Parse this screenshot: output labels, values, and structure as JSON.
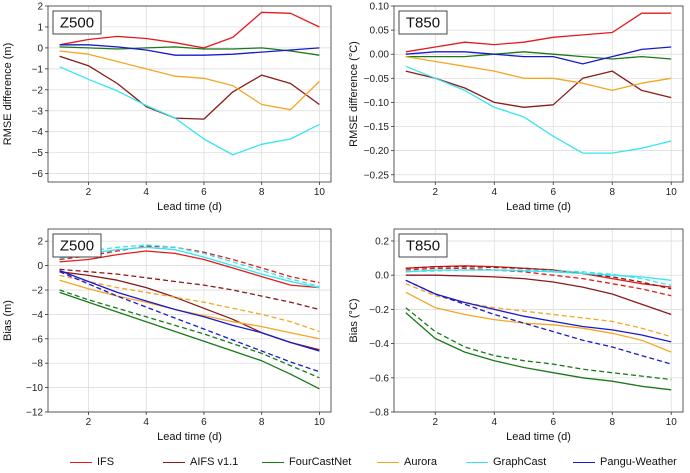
{
  "colors": {
    "IFS": "#e41a1c",
    "AIFS v1.1": "#8b1a1a",
    "FourCastNet": "#1a7a1a",
    "Aurora": "#f5a623",
    "GraphCast": "#33e6f0",
    "Pangu-Weather": "#1a1acd"
  },
  "legend": [
    "IFS",
    "AIFS v1.1",
    "FourCastNet",
    "Aurora",
    "GraphCast",
    "Pangu-Weather"
  ],
  "chart_data": [
    {
      "type": "line",
      "panel_title": "Z500",
      "xlabel": "Lead time (d)",
      "ylabel": "RMSE difference (m)",
      "xlim": [
        0.6,
        10.4
      ],
      "ylim": [
        -6.4,
        2.0
      ],
      "xticks": [
        2,
        4,
        6,
        8,
        10
      ],
      "yticks": [
        -6,
        -5,
        -4,
        -3,
        -2,
        -1,
        0,
        1,
        2
      ],
      "grid": true,
      "x": [
        1,
        2,
        3,
        4,
        5,
        6,
        7,
        8,
        9,
        10
      ],
      "series": [
        {
          "name": "IFS",
          "style": "solid",
          "values": [
            0.15,
            0.4,
            0.55,
            0.45,
            0.25,
            0.0,
            0.5,
            1.7,
            1.65,
            1.0
          ]
        },
        {
          "name": "AIFS v1.1",
          "style": "solid",
          "values": [
            -0.4,
            -0.85,
            -1.7,
            -2.8,
            -3.35,
            -3.4,
            -2.1,
            -1.3,
            -1.7,
            -2.7
          ]
        },
        {
          "name": "FourCastNet",
          "style": "solid",
          "values": [
            0.05,
            0.0,
            -0.05,
            0.0,
            0.05,
            -0.05,
            -0.05,
            0.0,
            -0.15,
            -0.35
          ]
        },
        {
          "name": "Aurora",
          "style": "solid",
          "values": [
            -0.15,
            -0.3,
            -0.65,
            -1.0,
            -1.35,
            -1.45,
            -1.8,
            -2.7,
            -2.95,
            -1.6
          ]
        },
        {
          "name": "GraphCast",
          "style": "solid",
          "values": [
            -0.9,
            -1.5,
            -2.05,
            -2.75,
            -3.35,
            -4.35,
            -5.1,
            -4.6,
            -4.35,
            -3.65
          ]
        },
        {
          "name": "Pangu-Weather",
          "style": "solid",
          "values": [
            0.15,
            0.15,
            0.05,
            -0.1,
            -0.35,
            -0.35,
            -0.3,
            -0.2,
            -0.1,
            0.0
          ]
        }
      ]
    },
    {
      "type": "line",
      "panel_title": "T850",
      "xlabel": "Lead time (d)",
      "ylabel": "RMSE difference (°C)",
      "xlim": [
        0.6,
        10.4
      ],
      "ylim": [
        -0.265,
        0.1
      ],
      "xticks": [
        2,
        4,
        6,
        8,
        10
      ],
      "yticks": [
        -0.25,
        -0.2,
        -0.15,
        -0.1,
        -0.05,
        0.0,
        0.05,
        0.1
      ],
      "grid": true,
      "x": [
        1,
        2,
        3,
        4,
        5,
        6,
        7,
        8,
        9,
        10
      ],
      "series": [
        {
          "name": "IFS",
          "style": "solid",
          "values": [
            0.005,
            0.015,
            0.025,
            0.02,
            0.025,
            0.035,
            0.04,
            0.045,
            0.085,
            0.085
          ]
        },
        {
          "name": "AIFS v1.1",
          "style": "solid",
          "values": [
            -0.035,
            -0.05,
            -0.07,
            -0.1,
            -0.11,
            -0.105,
            -0.05,
            -0.035,
            -0.075,
            -0.09
          ]
        },
        {
          "name": "FourCastNet",
          "style": "solid",
          "values": [
            -0.005,
            -0.005,
            -0.005,
            0.0,
            0.005,
            0.0,
            -0.005,
            -0.01,
            -0.005,
            -0.01
          ]
        },
        {
          "name": "Aurora",
          "style": "solid",
          "values": [
            -0.005,
            -0.015,
            -0.025,
            -0.035,
            -0.05,
            -0.05,
            -0.06,
            -0.075,
            -0.06,
            -0.05
          ]
        },
        {
          "name": "GraphCast",
          "style": "solid",
          "values": [
            -0.025,
            -0.05,
            -0.075,
            -0.11,
            -0.13,
            -0.17,
            -0.205,
            -0.205,
            -0.195,
            -0.18
          ]
        },
        {
          "name": "Pangu-Weather",
          "style": "solid",
          "values": [
            0.0,
            0.005,
            0.005,
            0.0,
            -0.005,
            -0.005,
            -0.02,
            -0.005,
            0.01,
            0.015
          ]
        }
      ]
    },
    {
      "type": "line",
      "panel_title": "Z500",
      "xlabel": "Lead time (d)",
      "ylabel": "Bias (m)",
      "xlim": [
        0.6,
        10.4
      ],
      "ylim": [
        -12,
        3
      ],
      "xticks": [
        2,
        4,
        6,
        8,
        10
      ],
      "yticks": [
        -12,
        -10,
        -8,
        -6,
        -4,
        -2,
        0,
        2
      ],
      "grid": true,
      "x": [
        1,
        2,
        3,
        4,
        5,
        6,
        7,
        8,
        9,
        10
      ],
      "series": [
        {
          "name": "IFS",
          "style": "solid",
          "values": [
            0.3,
            0.5,
            0.9,
            1.2,
            1.0,
            0.5,
            -0.2,
            -0.9,
            -1.6,
            -1.8
          ]
        },
        {
          "name": "IFS",
          "style": "dashed",
          "values": [
            0.5,
            0.8,
            1.2,
            1.6,
            1.5,
            1.1,
            0.5,
            -0.2,
            -0.9,
            -1.4
          ]
        },
        {
          "name": "AIFS v1.1",
          "style": "solid",
          "values": [
            -0.5,
            -0.8,
            -1.2,
            -1.8,
            -2.6,
            -3.5,
            -4.4,
            -5.5,
            -6.3,
            -6.9
          ]
        },
        {
          "name": "AIFS v1.1",
          "style": "dashed",
          "values": [
            -0.3,
            -0.5,
            -0.7,
            -1.0,
            -1.3,
            -1.6,
            -2.0,
            -2.5,
            -3.0,
            -3.6
          ]
        },
        {
          "name": "FourCastNet",
          "style": "solid",
          "values": [
            -2.2,
            -3.0,
            -3.8,
            -4.6,
            -5.4,
            -6.2,
            -7.0,
            -7.8,
            -8.9,
            -10.1
          ]
        },
        {
          "name": "FourCastNet",
          "style": "dashed",
          "values": [
            -2.0,
            -2.8,
            -3.5,
            -4.2,
            -4.9,
            -5.6,
            -6.4,
            -7.2,
            -8.2,
            -9.2
          ]
        },
        {
          "name": "Aurora",
          "style": "solid",
          "values": [
            -1.2,
            -1.9,
            -2.5,
            -3.0,
            -3.6,
            -4.1,
            -4.6,
            -5.0,
            -5.5,
            -6.0
          ]
        },
        {
          "name": "Aurora",
          "style": "dashed",
          "values": [
            -0.8,
            -1.3,
            -1.8,
            -2.2,
            -2.6,
            -3.0,
            -3.5,
            -4.0,
            -4.6,
            -5.4
          ]
        },
        {
          "name": "GraphCast",
          "style": "solid",
          "values": [
            0.6,
            1.0,
            1.3,
            1.5,
            1.3,
            0.7,
            0.0,
            -0.7,
            -1.3,
            -1.8
          ]
        },
        {
          "name": "GraphCast",
          "style": "dashed",
          "values": [
            0.8,
            1.2,
            1.5,
            1.7,
            1.5,
            1.0,
            0.3,
            -0.4,
            -1.1,
            -1.7
          ]
        },
        {
          "name": "Pangu-Weather",
          "style": "solid",
          "values": [
            -0.4,
            -1.3,
            -2.2,
            -2.9,
            -3.6,
            -4.2,
            -4.9,
            -5.5,
            -6.3,
            -7.0
          ]
        },
        {
          "name": "Pangu-Weather",
          "style": "dashed",
          "values": [
            -0.5,
            -1.5,
            -2.5,
            -3.4,
            -4.3,
            -5.2,
            -6.1,
            -7.0,
            -7.9,
            -8.7
          ]
        }
      ]
    },
    {
      "type": "line",
      "panel_title": "T850",
      "xlabel": "Lead time (d)",
      "ylabel": "Bias (°C)",
      "xlim": [
        0.6,
        10.4
      ],
      "ylim": [
        -0.8,
        0.27
      ],
      "xticks": [
        2,
        4,
        6,
        8,
        10
      ],
      "yticks": [
        -0.8,
        -0.6,
        -0.4,
        -0.2,
        0.0,
        0.2
      ],
      "grid": true,
      "x": [
        1,
        2,
        3,
        4,
        5,
        6,
        7,
        8,
        9,
        10
      ],
      "series": [
        {
          "name": "IFS",
          "style": "solid",
          "values": [
            0.04,
            0.05,
            0.055,
            0.05,
            0.04,
            0.03,
            0.01,
            -0.02,
            -0.05,
            -0.07
          ]
        },
        {
          "name": "IFS",
          "style": "dashed",
          "values": [
            0.03,
            0.04,
            0.04,
            0.03,
            0.02,
            0.0,
            -0.02,
            -0.05,
            -0.08,
            -0.12
          ]
        },
        {
          "name": "AIFS v1.1",
          "style": "solid",
          "values": [
            0.0,
            0.0,
            -0.005,
            -0.01,
            -0.02,
            -0.04,
            -0.07,
            -0.11,
            -0.17,
            -0.23
          ]
        },
        {
          "name": "AIFS v1.1",
          "style": "dashed",
          "values": [
            0.04,
            0.05,
            0.05,
            0.045,
            0.04,
            0.03,
            0.01,
            -0.01,
            -0.04,
            -0.08
          ]
        },
        {
          "name": "FourCastNet",
          "style": "solid",
          "values": [
            -0.22,
            -0.37,
            -0.45,
            -0.5,
            -0.54,
            -0.57,
            -0.6,
            -0.62,
            -0.65,
            -0.67
          ]
        },
        {
          "name": "FourCastNet",
          "style": "dashed",
          "values": [
            -0.19,
            -0.33,
            -0.42,
            -0.47,
            -0.5,
            -0.52,
            -0.55,
            -0.57,
            -0.59,
            -0.61
          ]
        },
        {
          "name": "Aurora",
          "style": "solid",
          "values": [
            -0.1,
            -0.19,
            -0.23,
            -0.26,
            -0.28,
            -0.29,
            -0.31,
            -0.34,
            -0.38,
            -0.45
          ]
        },
        {
          "name": "Aurora",
          "style": "dashed",
          "values": [
            -0.05,
            -0.12,
            -0.16,
            -0.19,
            -0.21,
            -0.23,
            -0.25,
            -0.27,
            -0.31,
            -0.36
          ]
        },
        {
          "name": "GraphCast",
          "style": "solid",
          "values": [
            0.02,
            0.03,
            0.03,
            0.03,
            0.025,
            0.02,
            0.01,
            0.0,
            -0.01,
            -0.03
          ]
        },
        {
          "name": "GraphCast",
          "style": "dashed",
          "values": [
            0.02,
            0.025,
            0.03,
            0.03,
            0.03,
            0.025,
            0.02,
            0.005,
            -0.02,
            -0.06
          ]
        },
        {
          "name": "Pangu-Weather",
          "style": "solid",
          "values": [
            -0.03,
            -0.11,
            -0.16,
            -0.2,
            -0.24,
            -0.27,
            -0.3,
            -0.32,
            -0.35,
            -0.39
          ]
        },
        {
          "name": "Pangu-Weather",
          "style": "dashed",
          "values": [
            -0.03,
            -0.11,
            -0.17,
            -0.23,
            -0.28,
            -0.33,
            -0.38,
            -0.42,
            -0.47,
            -0.52
          ]
        }
      ]
    }
  ]
}
